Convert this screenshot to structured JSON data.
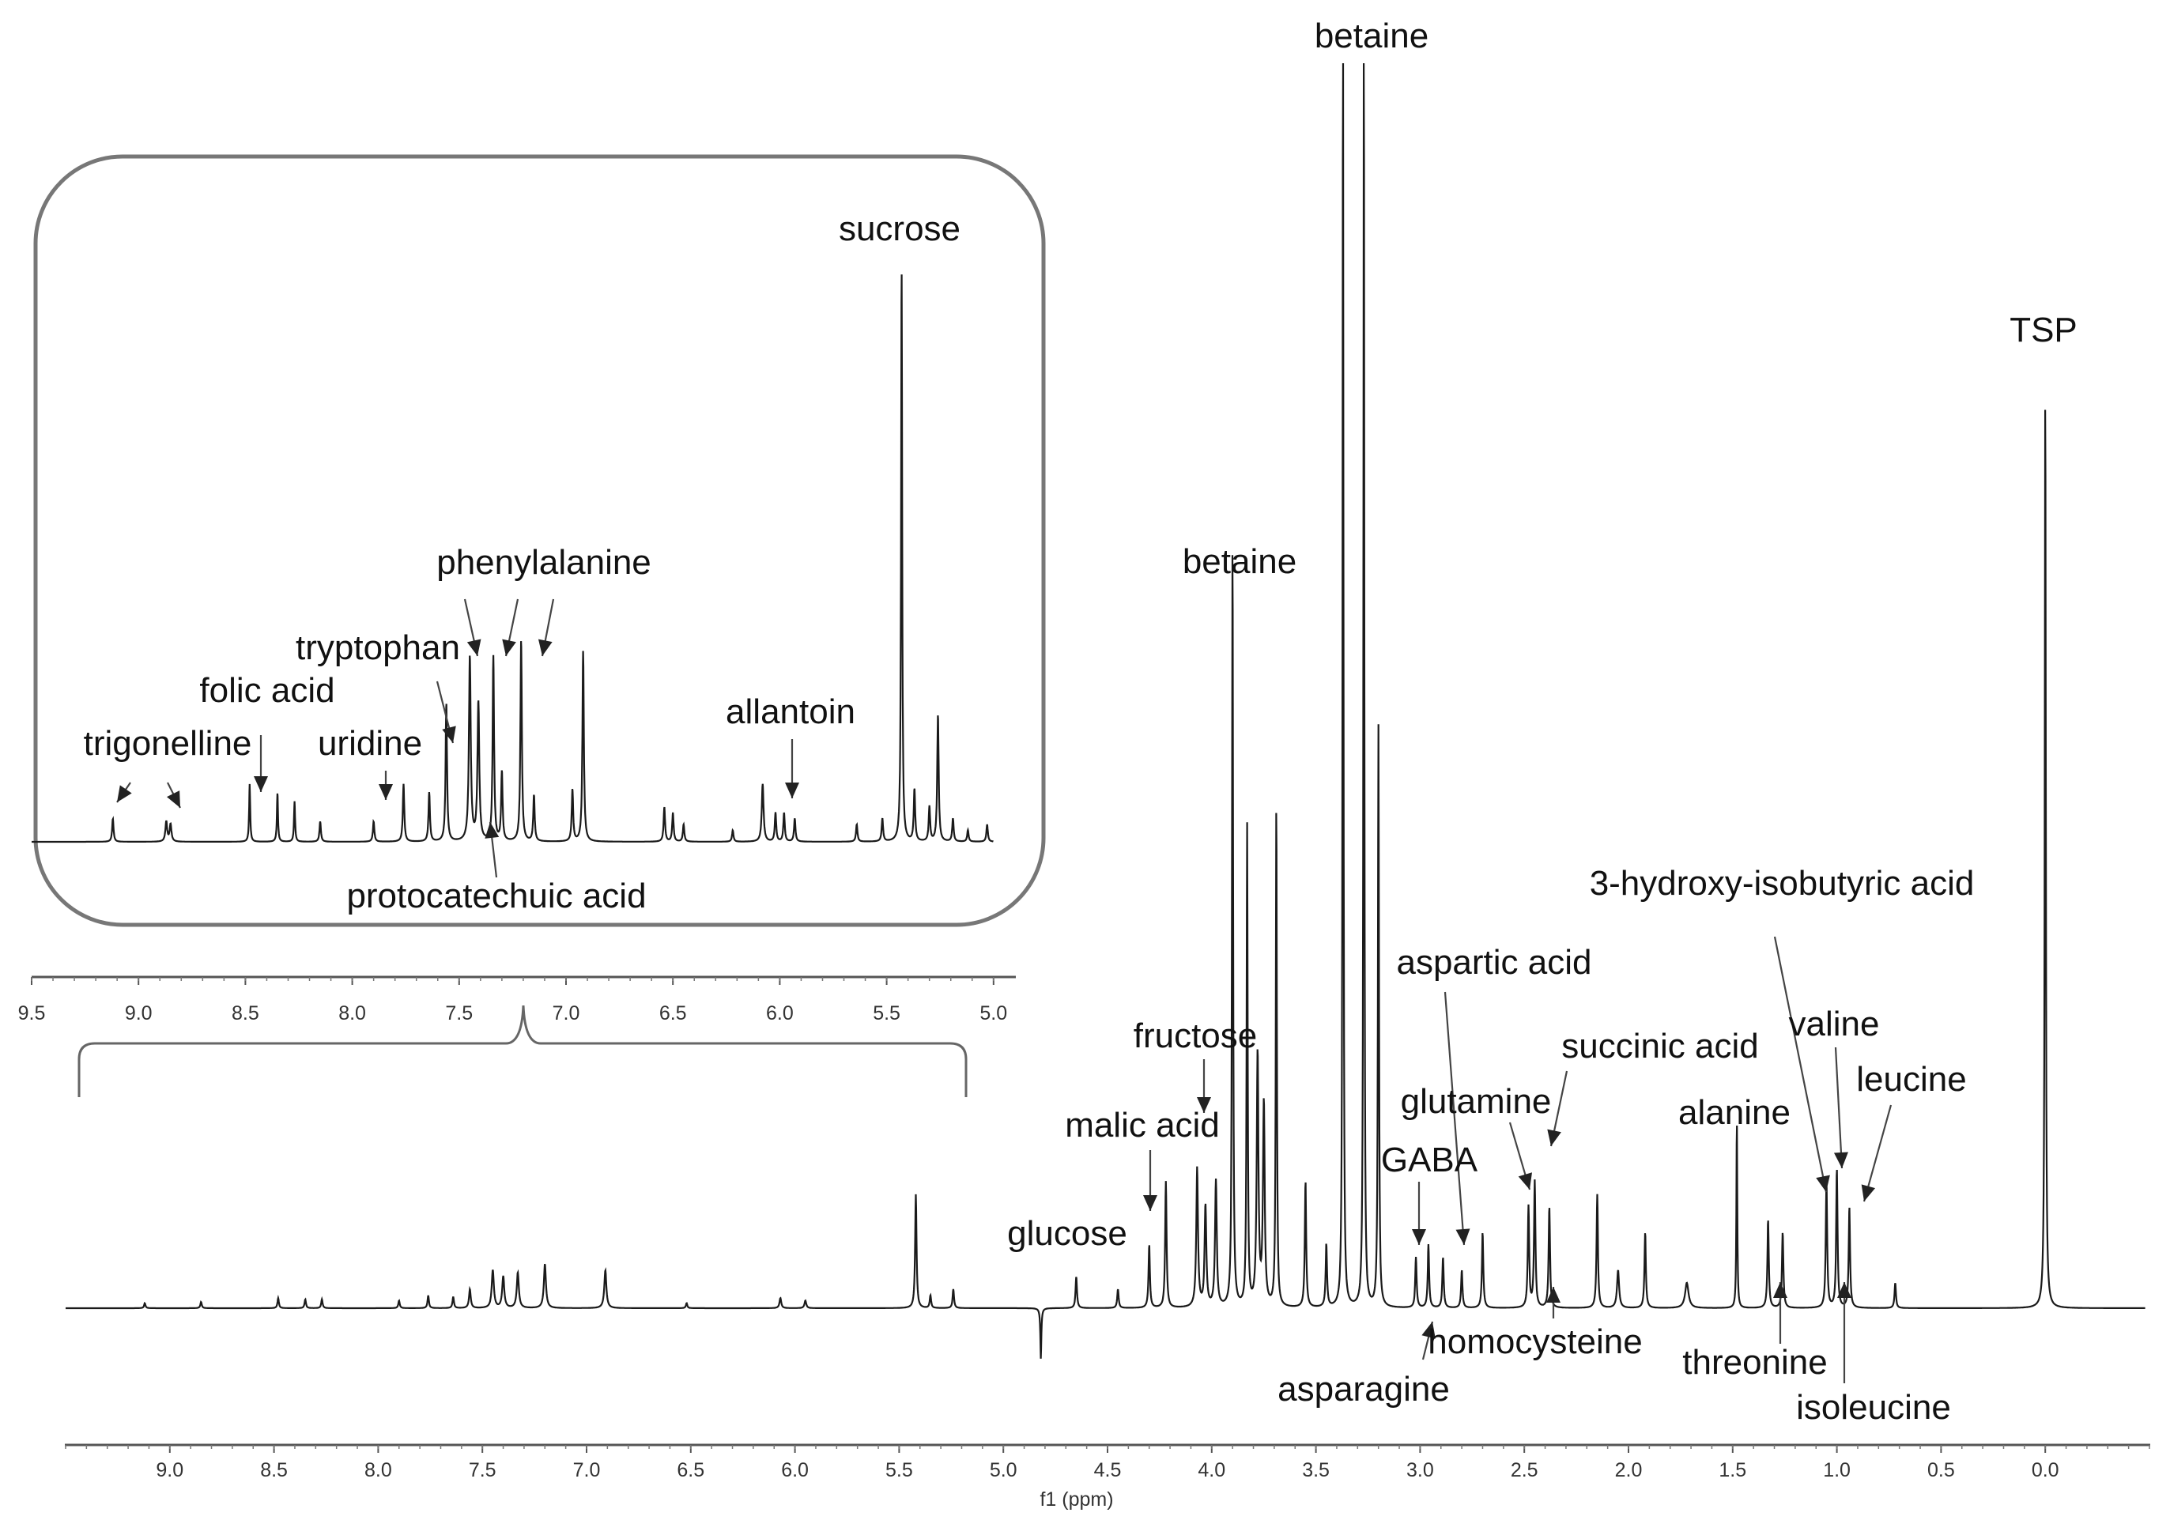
{
  "chart_data": [
    {
      "type": "line",
      "panel": "main",
      "xlabel": "f1 (ppm)",
      "x_reversed": true,
      "xlim": [
        9.5,
        -0.5
      ],
      "x_ticks": [
        "9.0",
        "8.5",
        "8.0",
        "7.5",
        "7.0",
        "6.5",
        "6.0",
        "5.5",
        "5.0",
        "4.5",
        "4.0",
        "3.5",
        "3.0",
        "2.5",
        "2.0",
        "1.5",
        "1.0",
        "0.5",
        "0.0"
      ],
      "ylim": [
        -0.05,
        1.0
      ],
      "peaks": [
        {
          "x": 9.12,
          "y": 0.004,
          "w": 0.004
        },
        {
          "x": 8.85,
          "y": 0.005,
          "w": 0.004
        },
        {
          "x": 8.48,
          "y": 0.008,
          "w": 0.004
        },
        {
          "x": 8.35,
          "y": 0.007,
          "w": 0.004
        },
        {
          "x": 8.27,
          "y": 0.007,
          "w": 0.004
        },
        {
          "x": 7.9,
          "y": 0.006,
          "w": 0.004
        },
        {
          "x": 7.76,
          "y": 0.01,
          "w": 0.004
        },
        {
          "x": 7.64,
          "y": 0.009,
          "w": 0.004
        },
        {
          "x": 7.56,
          "y": 0.015,
          "w": 0.005
        },
        {
          "x": 7.45,
          "y": 0.03,
          "w": 0.006
        },
        {
          "x": 7.4,
          "y": 0.025,
          "w": 0.006
        },
        {
          "x": 7.33,
          "y": 0.028,
          "w": 0.006
        },
        {
          "x": 7.2,
          "y": 0.035,
          "w": 0.006
        },
        {
          "x": 6.91,
          "y": 0.03,
          "w": 0.006
        },
        {
          "x": 6.52,
          "y": 0.004,
          "w": 0.004
        },
        {
          "x": 6.07,
          "y": 0.008,
          "w": 0.005
        },
        {
          "x": 5.95,
          "y": 0.006,
          "w": 0.005
        },
        {
          "x": 5.42,
          "y": 0.09,
          "w": 0.004
        },
        {
          "x": 5.35,
          "y": 0.01,
          "w": 0.004
        },
        {
          "x": 5.24,
          "y": 0.015,
          "w": 0.004
        },
        {
          "x": 4.65,
          "y": 0.025,
          "w": 0.004
        },
        {
          "x": 4.45,
          "y": 0.015,
          "w": 0.004
        },
        {
          "x": 4.3,
          "y": 0.05,
          "w": 0.004
        },
        {
          "x": 4.22,
          "y": 0.1,
          "w": 0.004
        },
        {
          "x": 4.07,
          "y": 0.11,
          "w": 0.005
        },
        {
          "x": 4.03,
          "y": 0.08,
          "w": 0.005
        },
        {
          "x": 3.98,
          "y": 0.1,
          "w": 0.005
        },
        {
          "x": 3.9,
          "y": 0.61,
          "w": 0.003
        },
        {
          "x": 3.83,
          "y": 0.38,
          "w": 0.003
        },
        {
          "x": 3.78,
          "y": 0.2,
          "w": 0.005
        },
        {
          "x": 3.75,
          "y": 0.16,
          "w": 0.005
        },
        {
          "x": 3.69,
          "y": 0.4,
          "w": 0.003
        },
        {
          "x": 3.55,
          "y": 0.1,
          "w": 0.004
        },
        {
          "x": 3.45,
          "y": 0.05,
          "w": 0.004
        },
        {
          "x": 3.37,
          "y": 1.05,
          "w": 0.0025
        },
        {
          "x": 3.27,
          "y": 1.05,
          "w": 0.0025
        },
        {
          "x": 3.2,
          "y": 0.46,
          "w": 0.003
        },
        {
          "x": 3.02,
          "y": 0.04,
          "w": 0.004
        },
        {
          "x": 2.96,
          "y": 0.05,
          "w": 0.004
        },
        {
          "x": 2.89,
          "y": 0.04,
          "w": 0.004
        },
        {
          "x": 2.8,
          "y": 0.03,
          "w": 0.004
        },
        {
          "x": 2.7,
          "y": 0.06,
          "w": 0.004
        },
        {
          "x": 2.48,
          "y": 0.08,
          "w": 0.004
        },
        {
          "x": 2.45,
          "y": 0.1,
          "w": 0.004
        },
        {
          "x": 2.38,
          "y": 0.08,
          "w": 0.004
        },
        {
          "x": 2.15,
          "y": 0.09,
          "w": 0.004
        },
        {
          "x": 2.05,
          "y": 0.03,
          "w": 0.006
        },
        {
          "x": 1.92,
          "y": 0.06,
          "w": 0.004
        },
        {
          "x": 1.72,
          "y": 0.02,
          "w": 0.01
        },
        {
          "x": 1.48,
          "y": 0.15,
          "w": 0.0025
        },
        {
          "x": 1.33,
          "y": 0.07,
          "w": 0.004
        },
        {
          "x": 1.26,
          "y": 0.06,
          "w": 0.004
        },
        {
          "x": 1.05,
          "y": 0.1,
          "w": 0.004
        },
        {
          "x": 1.0,
          "y": 0.11,
          "w": 0.004
        },
        {
          "x": 0.94,
          "y": 0.08,
          "w": 0.004
        },
        {
          "x": 0.72,
          "y": 0.02,
          "w": 0.004
        },
        {
          "x": 0.0,
          "y": 0.73,
          "w": 0.003
        }
      ],
      "negative_peaks": [
        {
          "x": 4.82,
          "y": -0.04
        }
      ],
      "annotations": [
        {
          "label": "betaine",
          "x": 3.32
        },
        {
          "label": "TSP",
          "x": 0.0
        },
        {
          "label": "betaine",
          "x": 3.9
        },
        {
          "label": "aspartic acid",
          "x": 2.82
        },
        {
          "label": "3-hydroxy-isobutyric acid",
          "x": 1.05
        },
        {
          "label": "fructose",
          "x": 4.05
        },
        {
          "label": "malic acid",
          "x": 4.3
        },
        {
          "label": "glucose",
          "x": 4.65
        },
        {
          "label": "GABA",
          "x": 3.02
        },
        {
          "label": "glutamine",
          "x": 2.48
        },
        {
          "label": "succinic acid",
          "x": 2.4
        },
        {
          "label": "alanine",
          "x": 1.48
        },
        {
          "label": "valine",
          "x": 1.02
        },
        {
          "label": "leucine",
          "x": 0.95
        },
        {
          "label": "homocysteine",
          "x": 2.38
        },
        {
          "label": "asparagine",
          "x": 2.96
        },
        {
          "label": "threonine",
          "x": 1.3
        },
        {
          "label": "isoleucine",
          "x": 1.0
        }
      ]
    },
    {
      "type": "line",
      "panel": "inset",
      "x_reversed": true,
      "xlim": [
        9.5,
        5.0
      ],
      "x_ticks": [
        "9.5",
        "9.0",
        "8.5",
        "8.0",
        "7.5",
        "7.0",
        "6.5",
        "6.0",
        "5.5",
        "5.0"
      ],
      "ylim": [
        0,
        1.0
      ],
      "peaks": [
        {
          "x": 9.12,
          "y": 0.04,
          "w": 0.004
        },
        {
          "x": 8.87,
          "y": 0.035,
          "w": 0.005
        },
        {
          "x": 8.85,
          "y": 0.03,
          "w": 0.005
        },
        {
          "x": 8.48,
          "y": 0.1,
          "w": 0.003
        },
        {
          "x": 8.35,
          "y": 0.085,
          "w": 0.003
        },
        {
          "x": 8.27,
          "y": 0.07,
          "w": 0.003
        },
        {
          "x": 8.15,
          "y": 0.035,
          "w": 0.004
        },
        {
          "x": 7.9,
          "y": 0.035,
          "w": 0.004
        },
        {
          "x": 7.76,
          "y": 0.1,
          "w": 0.004
        },
        {
          "x": 7.64,
          "y": 0.085,
          "w": 0.004
        },
        {
          "x": 7.56,
          "y": 0.24,
          "w": 0.004
        },
        {
          "x": 7.45,
          "y": 0.32,
          "w": 0.005
        },
        {
          "x": 7.41,
          "y": 0.24,
          "w": 0.005
        },
        {
          "x": 7.34,
          "y": 0.32,
          "w": 0.004
        },
        {
          "x": 7.3,
          "y": 0.12,
          "w": 0.004
        },
        {
          "x": 7.21,
          "y": 0.35,
          "w": 0.004
        },
        {
          "x": 7.15,
          "y": 0.08,
          "w": 0.004
        },
        {
          "x": 6.97,
          "y": 0.09,
          "w": 0.004
        },
        {
          "x": 6.92,
          "y": 0.33,
          "w": 0.004
        },
        {
          "x": 6.54,
          "y": 0.06,
          "w": 0.004
        },
        {
          "x": 6.5,
          "y": 0.05,
          "w": 0.004
        },
        {
          "x": 6.45,
          "y": 0.03,
          "w": 0.004
        },
        {
          "x": 6.22,
          "y": 0.02,
          "w": 0.004
        },
        {
          "x": 6.08,
          "y": 0.1,
          "w": 0.005
        },
        {
          "x": 6.02,
          "y": 0.05,
          "w": 0.004
        },
        {
          "x": 5.98,
          "y": 0.05,
          "w": 0.004
        },
        {
          "x": 5.93,
          "y": 0.04,
          "w": 0.004
        },
        {
          "x": 5.64,
          "y": 0.03,
          "w": 0.004
        },
        {
          "x": 5.52,
          "y": 0.04,
          "w": 0.004
        },
        {
          "x": 5.43,
          "y": 1.0,
          "w": 0.003
        },
        {
          "x": 5.37,
          "y": 0.09,
          "w": 0.004
        },
        {
          "x": 5.3,
          "y": 0.06,
          "w": 0.004
        },
        {
          "x": 5.26,
          "y": 0.22,
          "w": 0.004
        },
        {
          "x": 5.19,
          "y": 0.04,
          "w": 0.004
        },
        {
          "x": 5.12,
          "y": 0.02,
          "w": 0.004
        },
        {
          "x": 5.03,
          "y": 0.03,
          "w": 0.004
        }
      ],
      "annotations": [
        {
          "label": "sucrose",
          "x": 5.43
        },
        {
          "label": "phenylalanine",
          "x": 7.33
        },
        {
          "label": "tryptophan",
          "x": 7.56
        },
        {
          "label": "folic acid",
          "x": 8.48
        },
        {
          "label": "trigonelline",
          "x": 9.12
        },
        {
          "label": "uridine",
          "x": 7.9
        },
        {
          "label": "allantoin",
          "x": 6.0
        },
        {
          "label": "protocatechuic acid",
          "x": 7.4
        }
      ]
    }
  ]
}
